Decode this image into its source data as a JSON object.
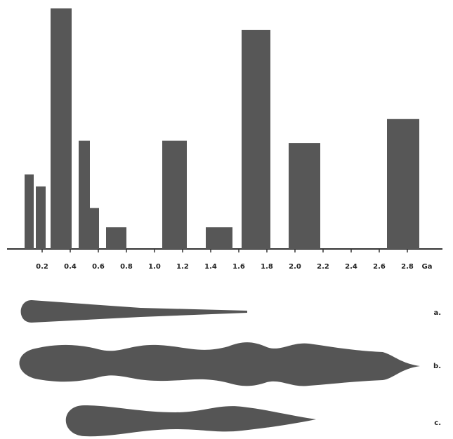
{
  "chart_data": {
    "type": "bar",
    "x_start": [
      0.075,
      0.155,
      0.26,
      0.46,
      0.54,
      0.655,
      1.055,
      1.365,
      1.62,
      1.955,
      2.655
    ],
    "x_end": [
      0.14,
      0.225,
      0.41,
      0.54,
      0.605,
      0.8,
      1.23,
      1.555,
      1.825,
      2.18,
      2.885
    ],
    "values": [
      31,
      26,
      100,
      45,
      17,
      9,
      45,
      9,
      91,
      44,
      54
    ],
    "color": "#575757",
    "xlim": [
      -0.05,
      3.05
    ],
    "ylim": [
      0,
      100
    ],
    "xticks": [
      0.2,
      0.4,
      0.6,
      0.8,
      {
        "value": 1.0,
        "label": "1.0"
      },
      1.2,
      1.4,
      1.6,
      1.8,
      {
        "value": 2.0,
        "label": "2.0"
      },
      2.2,
      2.4,
      2.6,
      2.8
    ],
    "x_unit": "Ga"
  },
  "shape_labels": [
    "a.",
    "b.",
    "c."
  ]
}
